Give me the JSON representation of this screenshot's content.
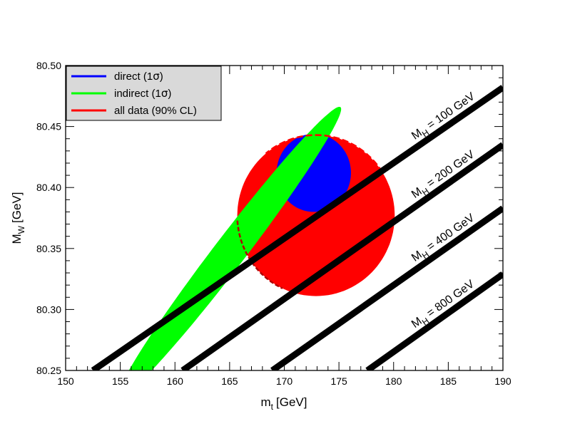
{
  "chart_data": {
    "type": "scatter",
    "title": "",
    "xlabel": "m",
    "xlabel_sub": "t",
    "xlabel_unit": "[GeV]",
    "ylabel": "M",
    "ylabel_sub": "W",
    "ylabel_unit": "[GeV]",
    "xlim": [
      150,
      190
    ],
    "ylim": [
      80.25,
      80.5
    ],
    "x_ticks": [
      150,
      155,
      160,
      165,
      170,
      175,
      180,
      185,
      190
    ],
    "y_ticks": [
      80.25,
      80.3,
      80.35,
      80.4,
      80.45,
      80.5
    ],
    "x_tick_labels": [
      "150",
      "155",
      "160",
      "165",
      "170",
      "175",
      "180",
      "185",
      "190"
    ],
    "y_tick_labels": [
      "80.25",
      "80.30",
      "80.35",
      "80.40",
      "80.45",
      "80.50"
    ],
    "grid": false,
    "legend_placement": "top-left",
    "legend": [
      {
        "label_main": "direct (1",
        "label_sym": "σ",
        "label_end": ")",
        "color": "#0000ff"
      },
      {
        "label_main": "indirect (1",
        "label_sym": "σ",
        "label_end": ")",
        "color": "#00ff00"
      },
      {
        "label_main": "all data (90% CL)",
        "label_sym": "",
        "label_end": "",
        "color": "#ff0000"
      }
    ],
    "contours": [
      {
        "key": "all-data",
        "color": "#ff0000",
        "cx": 172.9,
        "cy": 80.377,
        "rx": 7.2,
        "ry": 0.066
      },
      {
        "key": "direct",
        "color": "#0000ff",
        "cx": 172.7,
        "cy": 80.412,
        "rx": 3.4,
        "ry": 0.032
      },
      {
        "key": "indirect",
        "color": "#00ff00",
        "cx": 165.0,
        "cy": 80.347,
        "rx": 10.2,
        "ry": 0.021,
        "tilt": 0.0115
      }
    ],
    "higgs_bands": [
      {
        "label_pre": "M",
        "label_sub": "H",
        "label_post": " = 100 GeV",
        "x": [
          152.5,
          190
        ],
        "y": [
          80.25,
          80.482
        ]
      },
      {
        "label_pre": "M",
        "label_sub": "H",
        "label_post": " = 200 GeV",
        "x": [
          160.7,
          190
        ],
        "y": [
          80.25,
          80.435
        ]
      },
      {
        "label_pre": "M",
        "label_sub": "H",
        "label_post": " = 400 GeV",
        "x": [
          168.9,
          190
        ],
        "y": [
          80.25,
          80.383
        ]
      },
      {
        "label_pre": "M",
        "label_sub": "H",
        "label_post": " = 800 GeV",
        "x": [
          177.6,
          190
        ],
        "y": [
          80.25,
          80.329
        ]
      }
    ]
  }
}
